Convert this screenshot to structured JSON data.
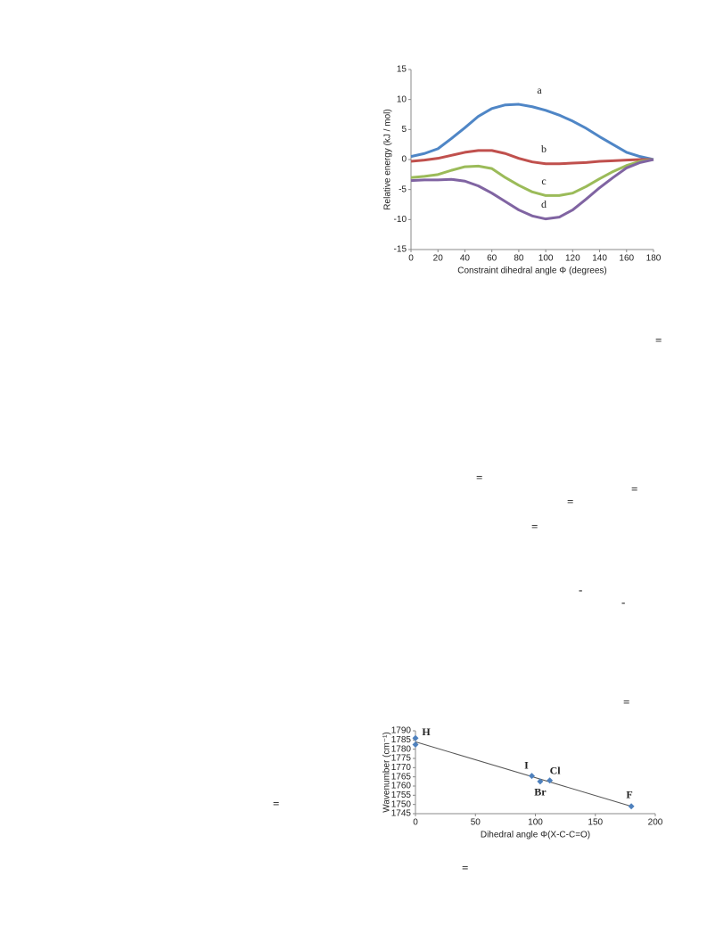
{
  "chart_data": [
    {
      "type": "line",
      "x_label": "Constraint dihedral angle Φ (degrees)",
      "y_label": "Relative energy (kJ / mol)",
      "x": [
        0,
        10,
        20,
        30,
        40,
        50,
        60,
        70,
        80,
        90,
        100,
        110,
        120,
        130,
        140,
        150,
        160,
        170,
        180
      ],
      "xlim": [
        0,
        180
      ],
      "xticks": [
        0,
        20,
        40,
        60,
        80,
        100,
        120,
        140,
        160,
        180
      ],
      "ylim": [
        -15,
        15
      ],
      "yticks": [
        -15,
        -10,
        -5,
        0,
        5,
        10,
        15
      ],
      "series": [
        {
          "name": "a",
          "color": "#4f86c6",
          "values": [
            0.5,
            1,
            1.8,
            3.5,
            5.3,
            7.2,
            8.5,
            9.1,
            9.2,
            8.8,
            8.2,
            7.4,
            6.4,
            5.2,
            3.8,
            2.5,
            1.2,
            0.5,
            0
          ]
        },
        {
          "name": "b",
          "color": "#c0504d",
          "values": [
            -0.3,
            -0.1,
            0.2,
            0.7,
            1.2,
            1.5,
            1.5,
            1.0,
            0.2,
            -0.4,
            -0.7,
            -0.7,
            -0.6,
            -0.5,
            -0.3,
            -0.2,
            -0.1,
            0,
            0
          ]
        },
        {
          "name": "c",
          "color": "#9bbb59",
          "values": [
            -3,
            -2.8,
            -2.5,
            -1.8,
            -1.2,
            -1.1,
            -1.5,
            -3,
            -4.3,
            -5.4,
            -6,
            -6,
            -5.6,
            -4.5,
            -3.2,
            -2,
            -1,
            -0.3,
            0
          ]
        },
        {
          "name": "d",
          "color": "#8064a2",
          "values": [
            -3.5,
            -3.4,
            -3.4,
            -3.3,
            -3.6,
            -4.4,
            -5.6,
            -7,
            -8.4,
            -9.4,
            -9.9,
            -9.6,
            -8.4,
            -6.6,
            -4.7,
            -3,
            -1.4,
            -0.5,
            0
          ]
        }
      ]
    },
    {
      "type": "scatter",
      "x_label": "Dihedral angle Φ(X-C-C=O)",
      "y_label": "Wavenumber (cm⁻¹)",
      "x": [
        0,
        0,
        97,
        104,
        112,
        180
      ],
      "values": [
        1786,
        1782.5,
        1765.5,
        1762.5,
        1763,
        1749
      ],
      "point_labels": [
        "H",
        null,
        "I",
        "Br",
        "Cl",
        "F"
      ],
      "color": "#4f81bd",
      "trendline": {
        "x": [
          0,
          180
        ],
        "values": [
          1784,
          1749
        ]
      },
      "xlim": [
        0,
        200
      ],
      "xticks": [
        0,
        50,
        100,
        150,
        200
      ],
      "ylim": [
        1745,
        1790
      ],
      "yticks": [
        1745,
        1750,
        1755,
        1760,
        1765,
        1770,
        1775,
        1780,
        1785,
        1790
      ]
    }
  ],
  "stray_symbols": [
    "=",
    "=",
    "=",
    "=",
    "=",
    "-",
    "-",
    "=",
    "=",
    "="
  ]
}
